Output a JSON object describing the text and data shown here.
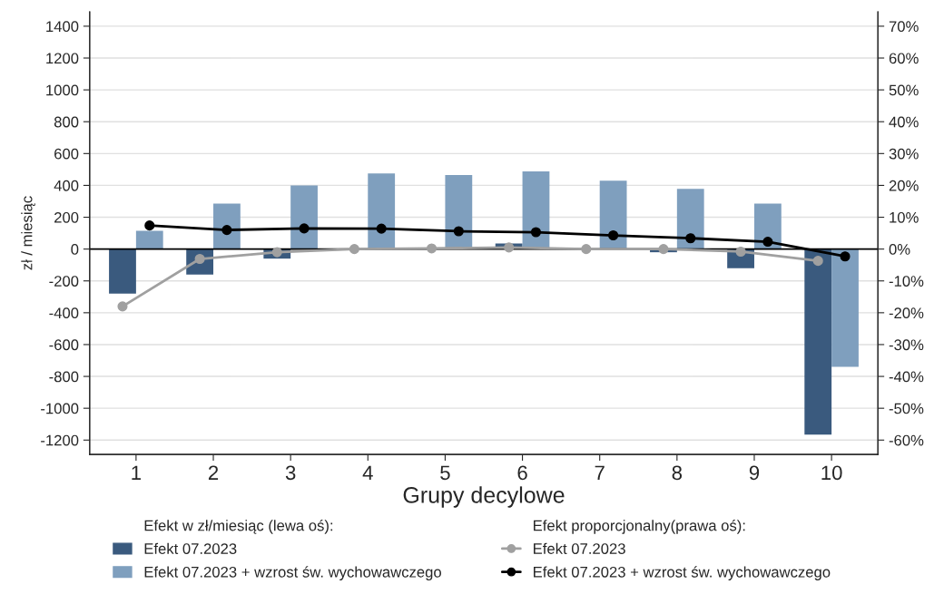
{
  "chart_data": {
    "type": "bar",
    "xlabel": "Grupy decylowe",
    "ylabel": "zł / miesiąc",
    "categories": [
      "1",
      "2",
      "3",
      "4",
      "5",
      "6",
      "7",
      "8",
      "9",
      "10"
    ],
    "series": [
      {
        "name": "Efekt 07.2023",
        "color": "#3a5a7e",
        "values": [
          -280,
          -160,
          -60,
          null,
          null,
          35,
          null,
          -20,
          -120,
          -1165
        ]
      },
      {
        "name": "Efekt 07.2023 + wzrost św. wychowawczego",
        "color": "#7f9fbe",
        "values": [
          115,
          285,
          400,
          475,
          465,
          488,
          430,
          378,
          285,
          -740
        ]
      },
      {
        "name": "Efekt 07.2023",
        "type": "line",
        "axis": "y2",
        "color": "#a0a0a0",
        "values": [
          -18,
          -3.1,
          -1,
          0,
          0.2,
          0.5,
          0,
          0,
          -0.8,
          -3.7
        ]
      },
      {
        "name": "Efekt 07.2023 + wzrost św. wychowawczego",
        "type": "line",
        "axis": "y2",
        "color": "#000000",
        "values": [
          7.4,
          6,
          6.5,
          6.4,
          5.6,
          5.3,
          4.3,
          3.4,
          2.3,
          -2.3
        ]
      }
    ],
    "annotations": [
      "Efekt w zł/miesiąc (lewa oś):",
      "Efekt proporcjonalny(prawa oś):"
    ],
    "ylim": [
      -1290,
      1490
    ],
    "yticks": [
      -1200,
      -1000,
      -800,
      -600,
      -400,
      -200,
      0,
      200,
      400,
      600,
      800,
      1000,
      1200,
      1400
    ],
    "y2lim": [
      -64.5,
      74.5
    ],
    "y2ticks": [
      {
        "value": -60,
        "label": "-60%"
      },
      {
        "value": -50,
        "label": "-50%"
      },
      {
        "value": -40,
        "label": "-40%"
      },
      {
        "value": -30,
        "label": "-30%"
      },
      {
        "value": -20,
        "label": "-20%"
      },
      {
        "value": -10,
        "label": "-10%"
      },
      {
        "value": 0,
        "label": "0%"
      },
      {
        "value": 10,
        "label": "10%"
      },
      {
        "value": 20,
        "label": "20%"
      },
      {
        "value": 30,
        "label": "30%"
      },
      {
        "value": 40,
        "label": "40%"
      },
      {
        "value": 50,
        "label": "50%"
      },
      {
        "value": 60,
        "label": "60%"
      },
      {
        "value": 70,
        "label": "70%"
      }
    ],
    "ref_lines": [
      {
        "axis": "y",
        "value": 0,
        "color": "#000000"
      }
    ],
    "grid": "y",
    "legend": "bottom",
    "marker": "circle",
    "line_style": "solid"
  }
}
